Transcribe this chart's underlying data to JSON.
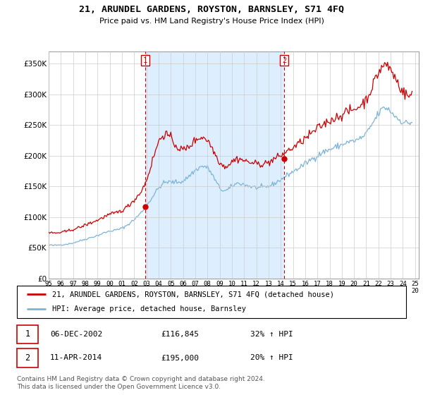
{
  "title": "21, ARUNDEL GARDENS, ROYSTON, BARNSLEY, S71 4FQ",
  "subtitle": "Price paid vs. HM Land Registry's House Price Index (HPI)",
  "legend_line1": "21, ARUNDEL GARDENS, ROYSTON, BARNSLEY, S71 4FQ (detached house)",
  "legend_line2": "HPI: Average price, detached house, Barnsley",
  "footer": "Contains HM Land Registry data © Crown copyright and database right 2024.\nThis data is licensed under the Open Government Licence v3.0.",
  "transaction1_label": "1",
  "transaction1_date": "06-DEC-2002",
  "transaction1_price": "£116,845",
  "transaction1_hpi": "32% ↑ HPI",
  "transaction2_label": "2",
  "transaction2_date": "11-APR-2014",
  "transaction2_price": "£195,000",
  "transaction2_hpi": "20% ↑ HPI",
  "ylim": [
    0,
    370000
  ],
  "yticks": [
    0,
    50000,
    100000,
    150000,
    200000,
    250000,
    300000,
    350000
  ],
  "ytick_labels": [
    "£0",
    "£50K",
    "£100K",
    "£150K",
    "£200K",
    "£250K",
    "£300K",
    "£350K"
  ],
  "hpi_color": "#7ab4d8",
  "price_color": "#cc0000",
  "shade_color": "#ddeeff",
  "marker1_x": 2002.92,
  "marker1_y": 116845,
  "marker2_x": 2014.28,
  "marker2_y": 195000,
  "vline1_x": 2002.92,
  "vline2_x": 2014.28,
  "xlim_start": 1995.0,
  "xlim_end": 2025.3,
  "xtick_years": [
    1995,
    1996,
    1997,
    1998,
    1999,
    2000,
    2001,
    2002,
    2003,
    2004,
    2005,
    2006,
    2007,
    2008,
    2009,
    2010,
    2011,
    2012,
    2013,
    2014,
    2015,
    2016,
    2017,
    2018,
    2019,
    2020,
    2021,
    2022,
    2023,
    2024,
    2025
  ]
}
